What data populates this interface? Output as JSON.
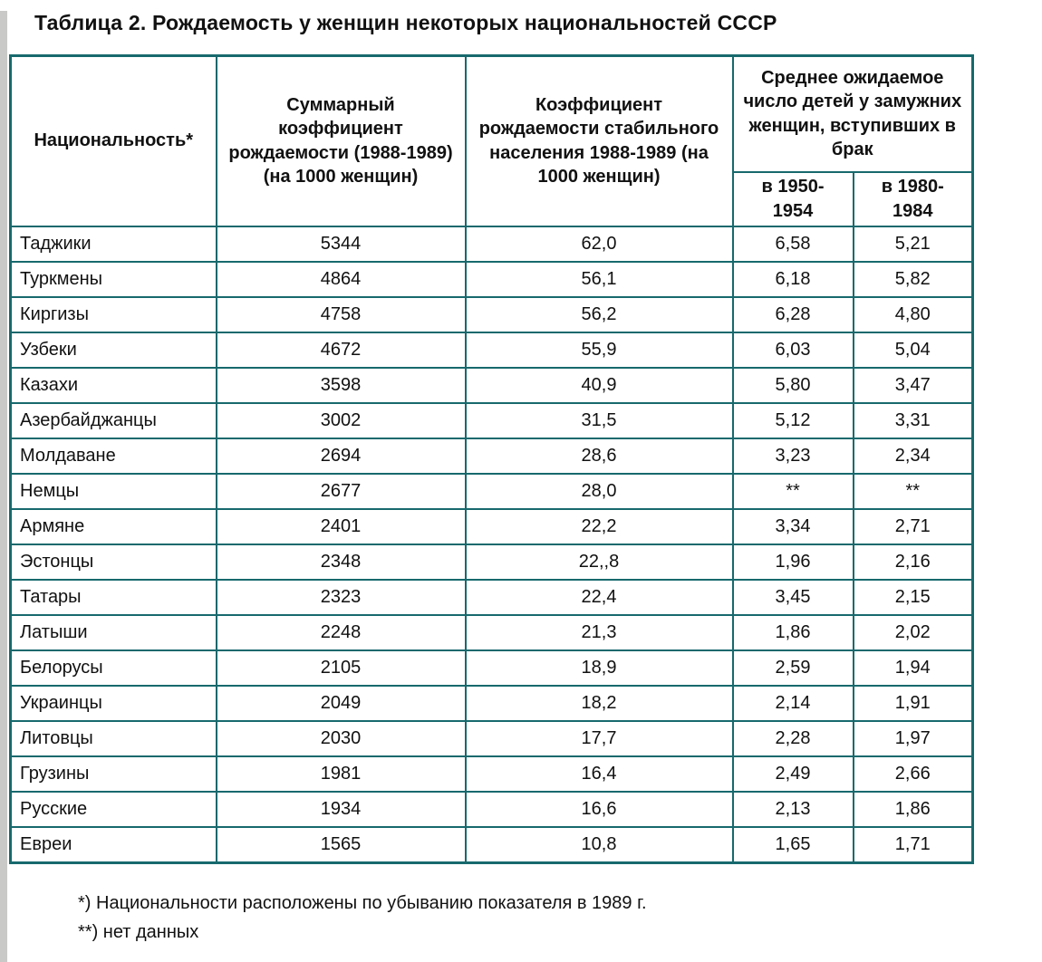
{
  "page": {
    "title": "Таблица 2. Рождаемость у женщин некоторых национальностей СССР"
  },
  "colors": {
    "table_border": "#17696d",
    "left_strip": "#c9c9c7",
    "text": "#111111",
    "background": "#ffffff"
  },
  "table": {
    "headers": {
      "nationality": "Национальность*",
      "total_fertility": "Суммарный коэффициент рождаемости (1988-1989) (на 1000 женщин)",
      "stable_population": "Коэффициент рождаемости стабильного населения 1988-1989 (на 1000 женщин)",
      "expected_children_group": "Среднее ожидаемое число детей у замужних женщин, вступивших в брак",
      "married_1950": "в 1950-1954",
      "married_1980": "в 1980-1984"
    },
    "rows": [
      [
        "Таджики",
        "5344",
        "62,0",
        "6,58",
        "5,21"
      ],
      [
        "Туркмены",
        "4864",
        "56,1",
        "6,18",
        "5,82"
      ],
      [
        "Киргизы",
        "4758",
        "56,2",
        "6,28",
        "4,80"
      ],
      [
        "Узбеки",
        "4672",
        "55,9",
        "6,03",
        "5,04"
      ],
      [
        "Казахи",
        "3598",
        "40,9",
        "5,80",
        "3,47"
      ],
      [
        "Азербайджанцы",
        "3002",
        "31,5",
        "5,12",
        "3,31"
      ],
      [
        "Молдаване",
        "2694",
        "28,6",
        "3,23",
        "2,34"
      ],
      [
        "Немцы",
        "2677",
        "28,0",
        "**",
        "**"
      ],
      [
        "Армяне",
        "2401",
        "22,2",
        "3,34",
        "2,71"
      ],
      [
        "Эстонцы",
        "2348",
        "22,,8",
        "1,96",
        "2,16"
      ],
      [
        "Татары",
        "2323",
        "22,4",
        "3,45",
        "2,15"
      ],
      [
        "Латыши",
        "2248",
        "21,3",
        "1,86",
        "2,02"
      ],
      [
        "Белорусы",
        "2105",
        "18,9",
        "2,59",
        "1,94"
      ],
      [
        "Украинцы",
        "2049",
        "18,2",
        "2,14",
        "1,91"
      ],
      [
        "Литовцы",
        "2030",
        "17,7",
        "2,28",
        "1,97"
      ],
      [
        "Грузины",
        "1981",
        "16,4",
        "2,49",
        "2,66"
      ],
      [
        "Русские",
        "1934",
        "16,6",
        "2,13",
        "1,86"
      ],
      [
        "Евреи",
        "1565",
        "10,8",
        "1,65",
        "1,71"
      ]
    ]
  },
  "footnotes": [
    "*) Национальности расположены по убыванию показателя в 1989 г.",
    "**) нет данных"
  ]
}
